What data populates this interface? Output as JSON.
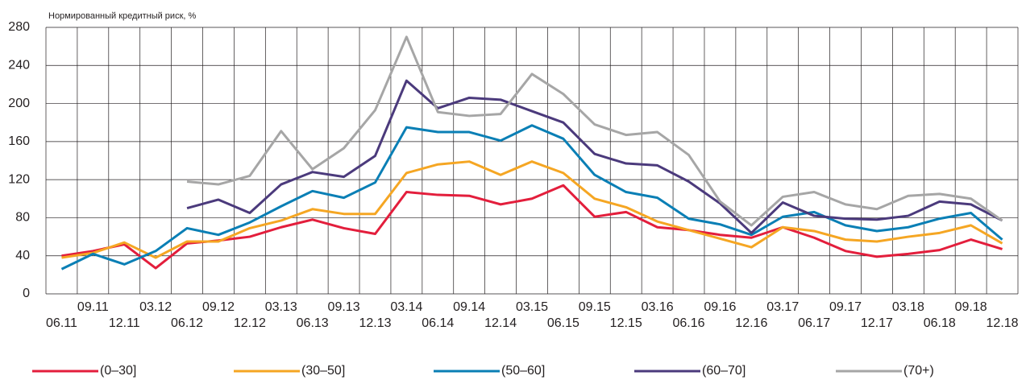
{
  "chart_data": {
    "type": "line",
    "y_label": "Нормированный кредитный риск, %",
    "categories": [
      "06.11",
      "09.11",
      "12.11",
      "03.12",
      "06.12",
      "09.12",
      "12.12",
      "03.13",
      "06.13",
      "09.13",
      "12.13",
      "03.14",
      "06.14",
      "09.14",
      "12.14",
      "03.15",
      "06.15",
      "09.15",
      "12.15",
      "03.16",
      "06.16",
      "09.16",
      "12.16",
      "03.17",
      "06.17",
      "09.17",
      "12.17",
      "03.18",
      "06.18",
      "09.18",
      "12.18"
    ],
    "series": [
      {
        "name": "(0–30]",
        "color": "#e31e3c",
        "values": [
          40,
          45,
          52,
          27,
          53,
          56,
          60,
          70,
          78,
          69,
          63,
          107,
          104,
          103,
          94,
          100,
          114,
          81,
          86,
          70,
          67,
          62,
          59,
          70,
          59,
          45,
          39,
          42,
          46,
          57,
          47
        ]
      },
      {
        "name": "(30–50]",
        "color": "#f5a623",
        "values": [
          38,
          43,
          54,
          38,
          55,
          55,
          69,
          77,
          89,
          84,
          84,
          127,
          136,
          139,
          125,
          139,
          127,
          100,
          91,
          76,
          67,
          58,
          49,
          70,
          66,
          57,
          55,
          60,
          64,
          72,
          53
        ]
      },
      {
        "name": "(50–60]",
        "color": "#0a7fb5",
        "values": [
          26,
          42,
          31,
          45,
          69,
          62,
          75,
          92,
          108,
          101,
          117,
          175,
          170,
          170,
          161,
          177,
          163,
          125,
          107,
          101,
          79,
          73,
          62,
          81,
          86,
          72,
          66,
          70,
          79,
          85,
          57
        ]
      },
      {
        "name": "(60–70]",
        "color": "#4b3a7c",
        "values": [
          null,
          null,
          null,
          null,
          90,
          99,
          85,
          115,
          128,
          123,
          145,
          224,
          195,
          206,
          204,
          192,
          180,
          147,
          137,
          135,
          118,
          95,
          64,
          96,
          82,
          79,
          78,
          82,
          97,
          94,
          77
        ]
      },
      {
        "name": "(70+)",
        "color": "#a6a6a6",
        "values": [
          null,
          null,
          null,
          null,
          118,
          115,
          124,
          171,
          131,
          153,
          193,
          270,
          191,
          187,
          189,
          231,
          210,
          178,
          167,
          170,
          146,
          97,
          72,
          102,
          107,
          94,
          89,
          103,
          105,
          100,
          77
        ]
      }
    ],
    "ylim": [
      0,
      280
    ],
    "yticks": [
      0,
      40,
      80,
      120,
      160,
      200,
      240,
      280
    ],
    "grid": true
  }
}
